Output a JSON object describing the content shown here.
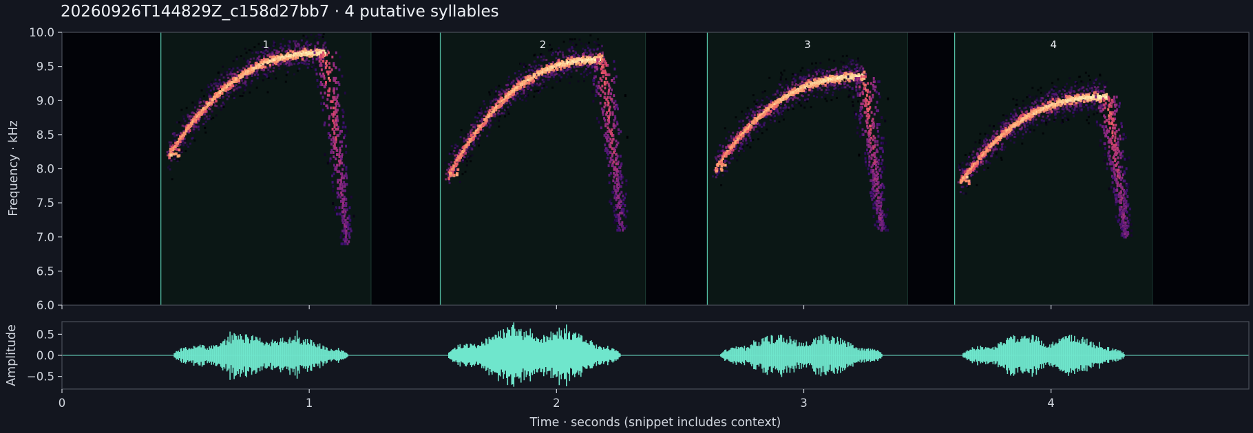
{
  "header": {
    "title": "20260926T144829Z_c158d27bb7  ·  4 putative syllables"
  },
  "colors": {
    "background": "#13161f",
    "spectrogram_bg": "#020308",
    "segment_fill": "#0b1715",
    "segment_line": "#5fd6b8",
    "waveform": "#6fe6cc",
    "axis": "#8a8f99"
  },
  "chart_data": [
    {
      "type": "heatmap",
      "name": "spectrogram",
      "ylabel": "Frequency · kHz",
      "xlim": [
        0,
        4.8
      ],
      "ylim": [
        6.0,
        10.0
      ],
      "y_ticks": [
        "6.0",
        "6.5",
        "7.0",
        "7.5",
        "8.0",
        "8.5",
        "9.0",
        "9.5",
        "10.0"
      ],
      "colormap": "magma",
      "segments": [
        {
          "label": "1",
          "start": 0.4,
          "end": 1.25
        },
        {
          "label": "2",
          "start": 1.53,
          "end": 2.36
        },
        {
          "label": "3",
          "start": 2.61,
          "end": 3.42
        },
        {
          "label": "4",
          "start": 3.61,
          "end": 4.41
        }
      ],
      "syllables": [
        {
          "onset": 0.43,
          "f_start": 8.2,
          "peak_time": 1.06,
          "f_peak": 9.7,
          "offset": 1.15,
          "f_end": 6.9
        },
        {
          "onset": 1.56,
          "f_start": 7.9,
          "peak_time": 2.18,
          "f_peak": 9.6,
          "offset": 2.26,
          "f_end": 7.1
        },
        {
          "onset": 2.64,
          "f_start": 8.0,
          "peak_time": 3.24,
          "f_peak": 9.35,
          "offset": 3.31,
          "f_end": 7.1
        },
        {
          "onset": 3.63,
          "f_start": 7.8,
          "peak_time": 4.22,
          "f_peak": 9.05,
          "offset": 4.3,
          "f_end": 7.0
        }
      ]
    },
    {
      "type": "line",
      "name": "waveform",
      "xlabel": "Time · seconds (snippet includes context)",
      "ylabel": "Amplitude",
      "xlim": [
        0,
        4.8
      ],
      "ylim": [
        -0.8,
        0.8
      ],
      "x_ticks": [
        "0",
        "1",
        "2",
        "3",
        "4"
      ],
      "y_ticks": [
        "0.5",
        "0.0",
        "−0.5"
      ],
      "bursts": [
        {
          "start": 0.45,
          "end": 1.16,
          "peak_amplitude": 0.55
        },
        {
          "start": 1.56,
          "end": 2.26,
          "peak_amplitude": 0.75
        },
        {
          "start": 2.66,
          "end": 3.32,
          "peak_amplitude": 0.55
        },
        {
          "start": 3.64,
          "end": 4.3,
          "peak_amplitude": 0.55
        }
      ]
    }
  ]
}
